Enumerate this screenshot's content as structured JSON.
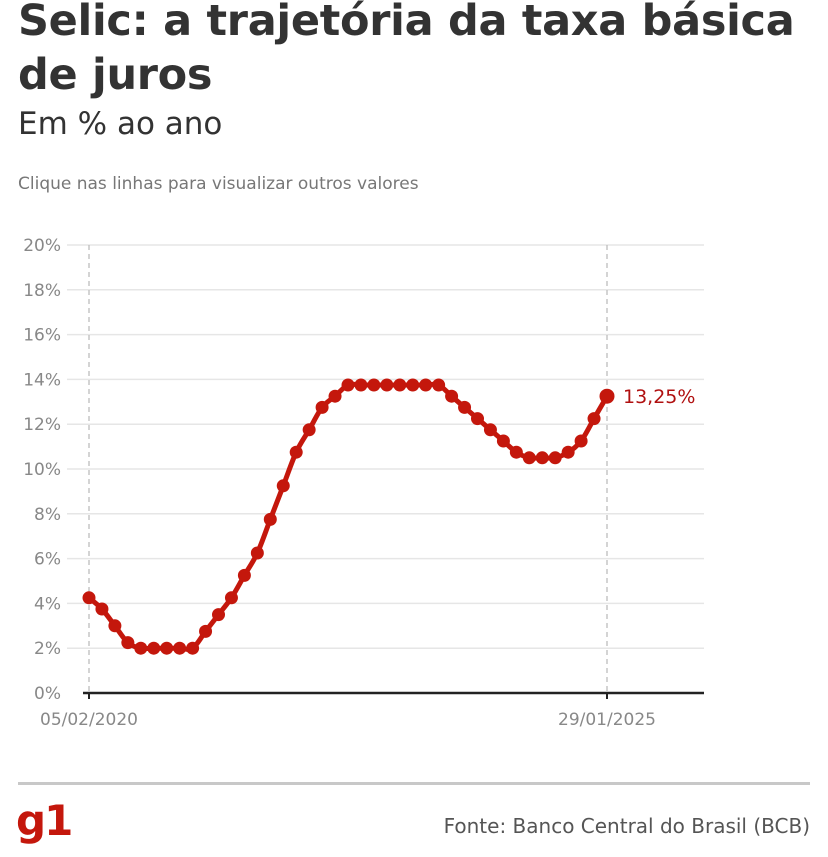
{
  "header": {
    "title": "Selic: a trajetória da taxa básica de juros",
    "subtitle": "Em % ao ano",
    "hint": "Clique nas linhas para visualizar outros valores"
  },
  "footer": {
    "logo": "g1",
    "source": "Fonte: Banco Central do Brasil (BCB)"
  },
  "colors": {
    "series": "#c4170c",
    "brand": "#c4170c",
    "grid": "#e6e6e6",
    "axis": "#222222"
  },
  "chart_data": {
    "type": "line",
    "title": "Selic: a trajetória da taxa básica de juros",
    "subtitle": "Em % ao ano",
    "xlabel": "",
    "ylabel": "",
    "x_tick_labels": [
      "05/02/2020",
      "29/01/2025"
    ],
    "y_ticks": [
      0,
      2,
      4,
      6,
      8,
      10,
      12,
      14,
      16,
      18,
      20
    ],
    "y_tick_labels": [
      "0%",
      "2%",
      "4%",
      "6%",
      "8%",
      "10%",
      "12%",
      "14%",
      "16%",
      "18%",
      "20%"
    ],
    "ylim": [
      0,
      20
    ],
    "grid": true,
    "series": [
      {
        "values": [
          4.25,
          3.75,
          3.0,
          2.25,
          2.0,
          2.0,
          2.0,
          2.0,
          2.0,
          2.75,
          3.5,
          4.25,
          5.25,
          6.25,
          7.75,
          9.25,
          10.75,
          11.75,
          12.75,
          13.25,
          13.75,
          13.75,
          13.75,
          13.75,
          13.75,
          13.75,
          13.75,
          13.75,
          13.25,
          12.75,
          12.25,
          11.75,
          11.25,
          10.75,
          10.5,
          10.5,
          10.5,
          10.75,
          11.25,
          12.25,
          13.25
        ]
      }
    ],
    "end_label": "13,25%"
  }
}
